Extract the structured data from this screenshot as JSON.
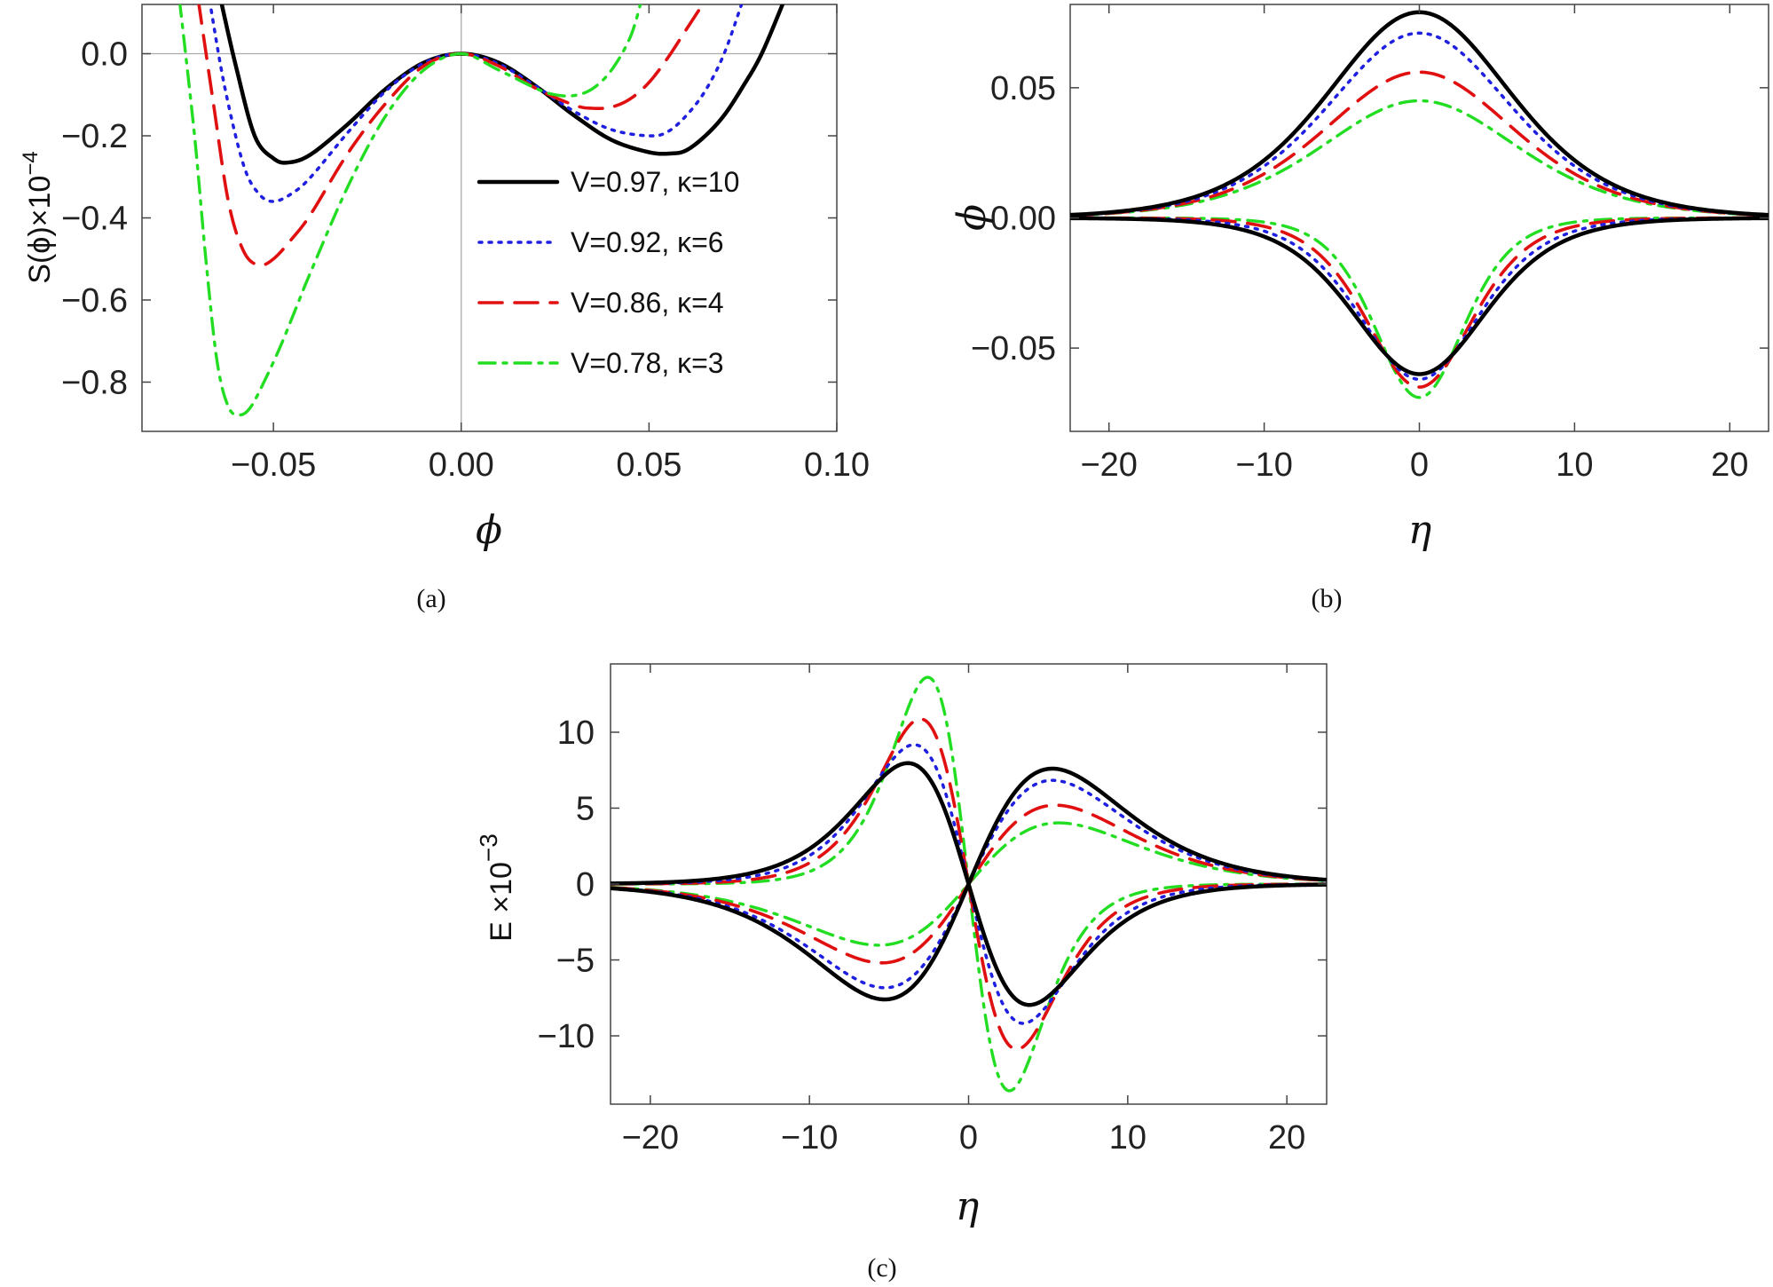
{
  "figure": {
    "captions": [
      "(a)",
      "(b)",
      "(c)"
    ],
    "series_styles": [
      {
        "color": "#000000",
        "dash": "solid"
      },
      {
        "color": "#1f1fe0",
        "dash": "dotted"
      },
      {
        "color": "#e01010",
        "dash": "dashed"
      },
      {
        "color": "#22dd22",
        "dash": "dashdot"
      }
    ]
  },
  "chart_data": [
    {
      "type": "line",
      "panel": "a",
      "title": "",
      "xlabel": "ϕ",
      "ylabel": "S(ϕ)×10",
      "ylabel_exp": "−4",
      "xlim": [
        -0.085,
        0.1
      ],
      "ylim": [
        -0.92,
        0.12
      ],
      "xticks": [
        -0.05,
        0.0,
        0.05,
        0.1
      ],
      "xtick_labels": [
        "−0.05",
        "0.00",
        "0.05",
        "0.10"
      ],
      "yticks": [
        0.0,
        -0.2,
        -0.4,
        -0.6,
        -0.8
      ],
      "ytick_labels": [
        "0.0",
        "−0.2",
        "−0.4",
        "−0.6",
        "−0.8"
      ],
      "legend_position": "right",
      "series": [
        {
          "name": "V=0.97, κ=10",
          "x": [
            -0.064,
            -0.06,
            -0.055,
            -0.05,
            -0.046,
            -0.04,
            -0.03,
            -0.02,
            -0.01,
            0.0,
            0.01,
            0.02,
            0.03,
            0.04,
            0.05,
            0.056,
            0.06,
            0.065,
            0.07,
            0.075,
            0.08,
            0.086
          ],
          "y": [
            0.13,
            -0.03,
            -0.2,
            -0.255,
            -0.265,
            -0.245,
            -0.17,
            -0.085,
            -0.022,
            0.0,
            -0.022,
            -0.08,
            -0.15,
            -0.21,
            -0.24,
            -0.243,
            -0.235,
            -0.2,
            -0.15,
            -0.08,
            0.0,
            0.13
          ]
        },
        {
          "name": "V=0.92, κ=6",
          "x": [
            -0.067,
            -0.063,
            -0.058,
            -0.054,
            -0.05,
            -0.045,
            -0.04,
            -0.03,
            -0.02,
            -0.01,
            0.0,
            0.01,
            0.02,
            0.03,
            0.04,
            0.05,
            0.055,
            0.06,
            0.065,
            0.07,
            0.075
          ],
          "y": [
            0.13,
            -0.08,
            -0.27,
            -0.34,
            -0.36,
            -0.34,
            -0.3,
            -0.19,
            -0.09,
            -0.023,
            0.0,
            -0.025,
            -0.08,
            -0.14,
            -0.185,
            -0.2,
            -0.19,
            -0.15,
            -0.09,
            0.0,
            0.13
          ]
        },
        {
          "name": "V=0.86, κ=4",
          "x": [
            -0.07,
            -0.066,
            -0.062,
            -0.058,
            -0.054,
            -0.05,
            -0.045,
            -0.04,
            -0.03,
            -0.02,
            -0.01,
            0.0,
            0.01,
            0.02,
            0.03,
            0.035,
            0.04,
            0.045,
            0.05,
            0.055,
            0.06,
            0.065
          ],
          "y": [
            0.13,
            -0.12,
            -0.36,
            -0.48,
            -0.515,
            -0.5,
            -0.45,
            -0.39,
            -0.24,
            -0.12,
            -0.03,
            0.0,
            -0.03,
            -0.085,
            -0.125,
            -0.133,
            -0.13,
            -0.11,
            -0.07,
            -0.01,
            0.06,
            0.13
          ]
        },
        {
          "name": "V=0.78, κ=3",
          "x": [
            -0.075,
            -0.071,
            -0.068,
            -0.065,
            -0.062,
            -0.059,
            -0.056,
            -0.052,
            -0.048,
            -0.044,
            -0.04,
            -0.03,
            -0.02,
            -0.01,
            0.0,
            0.01,
            0.02,
            0.025,
            0.03,
            0.035,
            0.04,
            0.045,
            0.048
          ],
          "y": [
            0.13,
            -0.2,
            -0.5,
            -0.75,
            -0.86,
            -0.88,
            -0.86,
            -0.79,
            -0.71,
            -0.62,
            -0.53,
            -0.32,
            -0.15,
            -0.04,
            0.0,
            -0.04,
            -0.085,
            -0.1,
            -0.102,
            -0.085,
            -0.04,
            0.04,
            0.13
          ]
        }
      ]
    },
    {
      "type": "line",
      "panel": "b",
      "title": "",
      "xlabel": "η",
      "ylabel": "ϕ",
      "xlim": [
        -22.5,
        22.5
      ],
      "ylim": [
        -0.082,
        0.082
      ],
      "xticks": [
        -20,
        -10,
        0,
        10,
        20
      ],
      "xtick_labels": [
        "−20",
        "−10",
        "0",
        "10",
        "20"
      ],
      "yticks": [
        0.05,
        0.0,
        -0.05
      ],
      "ytick_labels": [
        "0.05",
        "0.00",
        "−0.05"
      ],
      "curve_model": "upper: A_pos*sech(eta/W_pos)^2 ; lower: A_neg*sech(eta/W_neg)^2",
      "series": [
        {
          "name": "V=0.97, κ=10",
          "A_pos": 0.079,
          "W_pos": 8.0,
          "A_neg": -0.06,
          "W_neg": 5.8
        },
        {
          "name": "V=0.92, κ=6",
          "A_pos": 0.071,
          "W_pos": 8.0,
          "A_neg": -0.062,
          "W_neg": 5.2
        },
        {
          "name": "V=0.86, κ=4",
          "A_pos": 0.056,
          "W_pos": 8.3,
          "A_neg": -0.065,
          "W_neg": 4.6
        },
        {
          "name": "V=0.78, κ=3",
          "A_pos": 0.045,
          "W_pos": 8.6,
          "A_neg": -0.069,
          "W_neg": 3.9
        }
      ]
    },
    {
      "type": "line",
      "panel": "c",
      "title": "",
      "xlabel": "η",
      "ylabel": "E ×10",
      "ylabel_exp": "−3",
      "xlim": [
        -22.5,
        22.5
      ],
      "ylim": [
        -14.5,
        14.5
      ],
      "xticks": [
        -20,
        -10,
        0,
        10,
        20
      ],
      "xtick_labels": [
        "−20",
        "−10",
        "0",
        "10",
        "20"
      ],
      "yticks": [
        10,
        5,
        0,
        -5,
        -10
      ],
      "ytick_labels": [
        "10",
        "5",
        "0",
        "−5",
        "−10"
      ],
      "curve_model": "E = (2A/W)*sech(eta/W)^2*tanh(eta/W)",
      "series": [
        {
          "name": "V=0.97, κ=10",
          "A_pos": 0.079,
          "W_pos": 8.0,
          "A_neg": -0.06,
          "W_neg": 5.8
        },
        {
          "name": "V=0.92, κ=6",
          "A_pos": 0.071,
          "W_pos": 8.0,
          "A_neg": -0.062,
          "W_neg": 5.2
        },
        {
          "name": "V=0.86, κ=4",
          "A_pos": 0.056,
          "W_pos": 8.3,
          "A_neg": -0.065,
          "W_neg": 4.6
        },
        {
          "name": "V=0.78, κ=3",
          "A_pos": 0.045,
          "W_pos": 8.6,
          "A_neg": -0.069,
          "W_neg": 3.9
        }
      ]
    }
  ]
}
